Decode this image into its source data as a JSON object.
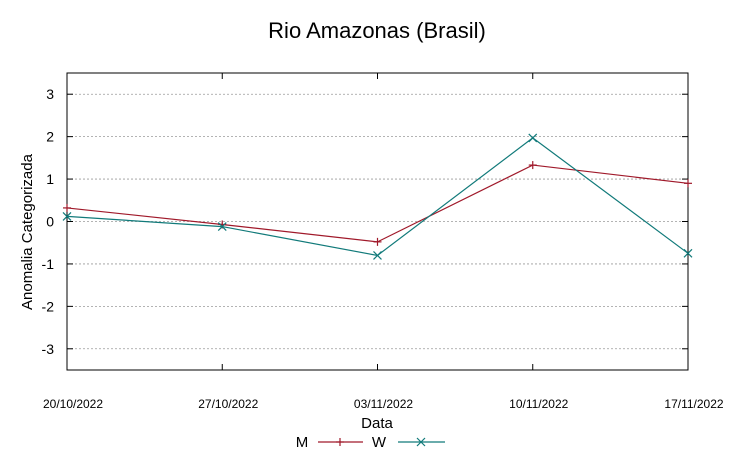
{
  "chart_data": {
    "type": "line",
    "title": "Rio Amazonas (Brasil)",
    "xlabel": "Data",
    "ylabel": "Anomalia Categorizada",
    "categories": [
      "20/10/2022",
      "27/10/2022",
      "03/11/2022",
      "10/11/2022",
      "17/11/2022"
    ],
    "yticks": [
      "3",
      "2",
      "1",
      "0",
      "-1",
      "-2",
      "-3"
    ],
    "ylim": [
      -3.5,
      3.5
    ],
    "grid": true,
    "legend_position": "bottom",
    "series": [
      {
        "name": "M",
        "values": [
          0.32,
          -0.07,
          -0.48,
          1.33,
          0.9
        ],
        "color": "#a0192a",
        "marker": "plus"
      },
      {
        "name": "W",
        "values": [
          0.12,
          -0.12,
          -0.8,
          1.97,
          -0.75
        ],
        "color": "#117a7a",
        "marker": "cross"
      }
    ]
  }
}
